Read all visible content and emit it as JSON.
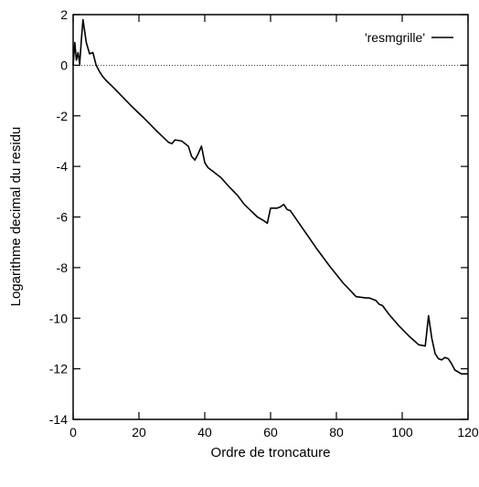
{
  "chart_data": {
    "type": "line",
    "title": "",
    "xlabel": "Ordre de troncature",
    "ylabel": "Logarithme decimal du residu",
    "xlim": [
      0,
      120
    ],
    "ylim": [
      -14,
      2
    ],
    "xticks": [
      0,
      20,
      40,
      60,
      80,
      100,
      120
    ],
    "yticks": [
      2,
      0,
      -2,
      -4,
      -6,
      -8,
      -10,
      -12,
      -14
    ],
    "xtick_labels": [
      "0",
      "20",
      "40",
      "60",
      "80",
      "100",
      "120"
    ],
    "ytick_labels": [
      "2",
      "0",
      "-2",
      "-4",
      "-6",
      "-8",
      "-10",
      "-12",
      "-14"
    ],
    "reference_line": {
      "y": 0,
      "style": "dotted"
    },
    "legend": {
      "position": "top-right"
    },
    "grid": false,
    "series": [
      {
        "name": "'resmgrille'",
        "x": [
          0,
          0.5,
          1,
          1.5,
          2,
          2.5,
          3,
          4,
          5,
          6,
          7,
          8,
          9,
          10,
          12,
          15,
          18,
          20,
          22,
          25,
          27,
          29,
          30,
          31,
          33,
          35,
          36,
          37,
          38,
          39,
          40,
          41,
          43,
          45,
          47,
          50,
          52,
          54,
          56,
          58,
          59,
          60,
          62,
          63,
          64,
          65,
          66,
          70,
          74,
          78,
          82,
          86,
          89,
          90,
          92,
          93,
          94,
          96,
          99,
          102,
          105,
          107,
          108,
          109,
          110,
          111,
          112,
          113,
          114,
          115,
          116,
          118,
          120
        ],
        "y": [
          0,
          0.9,
          0.2,
          0.5,
          0.05,
          1.0,
          1.8,
          0.9,
          0.45,
          0.5,
          0.0,
          -0.25,
          -0.45,
          -0.6,
          -0.85,
          -1.25,
          -1.65,
          -1.9,
          -2.15,
          -2.55,
          -2.8,
          -3.05,
          -3.1,
          -2.95,
          -3.0,
          -3.2,
          -3.6,
          -3.75,
          -3.5,
          -3.2,
          -3.85,
          -4.05,
          -4.25,
          -4.45,
          -4.75,
          -5.15,
          -5.5,
          -5.75,
          -6.0,
          -6.15,
          -6.25,
          -5.65,
          -5.65,
          -5.6,
          -5.5,
          -5.7,
          -5.75,
          -6.5,
          -7.25,
          -7.95,
          -8.6,
          -9.15,
          -9.2,
          -9.2,
          -9.3,
          -9.45,
          -9.5,
          -9.85,
          -10.3,
          -10.7,
          -11.05,
          -11.1,
          -9.9,
          -10.8,
          -11.4,
          -11.6,
          -11.65,
          -11.55,
          -11.6,
          -11.8,
          -12.05,
          -12.2,
          -12.2
        ]
      }
    ]
  }
}
